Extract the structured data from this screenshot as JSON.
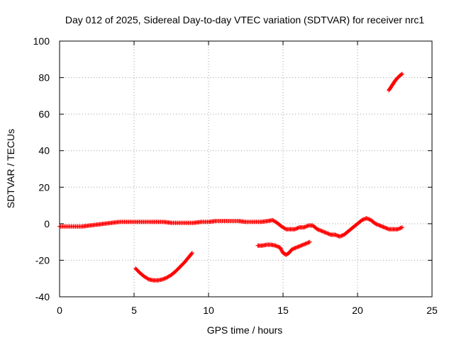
{
  "chart_data": {
    "type": "scatter",
    "title": "Day 012 of 2025, Sidereal Day-to-day VTEC variation (SDTVAR) for receiver nrc1",
    "xlabel": "GPS time / hours",
    "ylabel": "SDTVAR / TECUs",
    "xlim": [
      0,
      25
    ],
    "ylim": [
      -40,
      100
    ],
    "xticks": [
      0,
      5,
      10,
      15,
      20,
      25
    ],
    "xtick_labels": [
      "0",
      "5",
      "10",
      "15",
      "20",
      "25"
    ],
    "yticks": [
      -40,
      -20,
      0,
      20,
      40,
      60,
      80,
      100
    ],
    "ytick_labels": [
      "-40",
      "-20",
      "0",
      "20",
      "40",
      "60",
      "80",
      "100"
    ],
    "grid": true,
    "marker": "plus",
    "color": "#ff0000",
    "series": [
      {
        "name": "main",
        "x": [
          0,
          0.5,
          1,
          1.5,
          2,
          2.5,
          3,
          3.5,
          4,
          4.5,
          5,
          5.5,
          6,
          6.5,
          7,
          7.5,
          8,
          8.5,
          9,
          9.5,
          10,
          10.5,
          11,
          11.5,
          12,
          12.5,
          13,
          13.5,
          14,
          14.3,
          14.6,
          14.9,
          15.2,
          15.5,
          15.8,
          16.1,
          16.4,
          16.7,
          17,
          17.3,
          17.6,
          17.9,
          18.2,
          18.5,
          18.8,
          19.1,
          19.4,
          19.7,
          20,
          20.3,
          20.6,
          20.9,
          21.2,
          21.5,
          21.8,
          22.1,
          22.4,
          22.7,
          23
        ],
        "y": [
          -1.5,
          -1.5,
          -1.5,
          -1.5,
          -1,
          -0.5,
          0,
          0.5,
          1,
          1,
          1,
          1,
          1,
          1,
          1,
          0.5,
          0.5,
          0.5,
          0.5,
          1,
          1,
          1.5,
          1.5,
          1.5,
          1.5,
          1,
          1,
          1,
          1.5,
          2,
          0.5,
          -1.5,
          -3,
          -3,
          -3,
          -2,
          -2,
          -1,
          -1,
          -3,
          -4,
          -5,
          -6,
          -6,
          -7,
          -6,
          -4,
          -2,
          0,
          2,
          3,
          2,
          0,
          -1,
          -2,
          -3,
          -3,
          -3,
          -2
        ]
      },
      {
        "name": "arc",
        "x": [
          5.1,
          5.4,
          5.7,
          6,
          6.3,
          6.6,
          6.9,
          7.2,
          7.5,
          7.8,
          8.1,
          8.4,
          8.7,
          8.9
        ],
        "y": [
          -24.5,
          -27,
          -29,
          -30.5,
          -31,
          -31,
          -30.5,
          -29.5,
          -28,
          -26,
          -23.5,
          -21,
          -18,
          -16
        ]
      },
      {
        "name": "mid",
        "x": [
          13.3,
          13.6,
          13.9,
          14.2,
          14.5,
          14.8,
          15,
          15.2,
          15.4,
          15.6,
          15.9,
          16.2,
          16.5,
          16.8
        ],
        "y": [
          -12,
          -12,
          -11.5,
          -11.5,
          -12,
          -13,
          -16,
          -17,
          -16,
          -14,
          -13,
          -12,
          -11,
          -10
        ]
      },
      {
        "name": "high",
        "x": [
          22.1,
          22.3,
          22.5,
          22.7,
          22.9,
          23
        ],
        "y": [
          73,
          75.5,
          78,
          80,
          81.5,
          82
        ]
      }
    ]
  }
}
